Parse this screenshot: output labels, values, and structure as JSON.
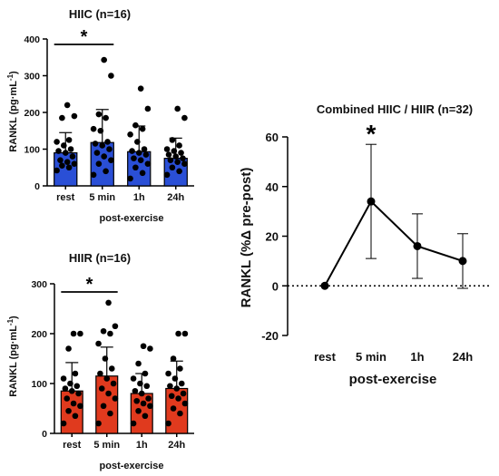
{
  "chart_data": [
    {
      "type": "bar",
      "title": "HIIC (n=16)",
      "ylabel": "RANKL (pg·mL",
      "ylabel_sup": "-1",
      "ylabel_close": ")",
      "xlabel": "post-exercise",
      "categories": [
        "rest",
        "5 min",
        "1h",
        "24h"
      ],
      "values": [
        90,
        118,
        93,
        75
      ],
      "sd": [
        55,
        90,
        70,
        55
      ],
      "ylim": [
        0,
        400
      ],
      "yticks": [
        "0",
        "100",
        "200",
        "300",
        "400"
      ],
      "bar_color": "#2a4fd6",
      "significance": {
        "from": 0,
        "to": 1,
        "label": "*"
      },
      "points": [
        [
          42,
          50,
          55,
          60,
          65,
          70,
          80,
          90,
          95,
          100,
          110,
          120,
          125,
          185,
          190,
          220
        ],
        [
          30,
          40,
          60,
          70,
          80,
          90,
          100,
          110,
          115,
          120,
          150,
          155,
          185,
          195,
          300,
          343
        ],
        [
          20,
          35,
          50,
          60,
          70,
          75,
          85,
          90,
          95,
          100,
          120,
          140,
          155,
          165,
          210,
          265
        ],
        [
          30,
          40,
          50,
          60,
          65,
          70,
          75,
          80,
          85,
          90,
          95,
          100,
          110,
          125,
          185,
          210
        ]
      ]
    },
    {
      "type": "bar",
      "title": "HIIR (n=16)",
      "ylabel": "RANKL (pg·mL",
      "ylabel_sup": "-1",
      "ylabel_close": ")",
      "xlabel": "post-exercise",
      "categories": [
        "rest",
        "5 min",
        "1h",
        "24h"
      ],
      "values": [
        85,
        115,
        80,
        90
      ],
      "sd": [
        57,
        58,
        40,
        55
      ],
      "ylim": [
        0,
        300
      ],
      "yticks": [
        "0",
        "100",
        "200",
        "300"
      ],
      "bar_color": "#e03a1e",
      "significance": {
        "from": 0,
        "to": 1,
        "label": "*"
      },
      "points": [
        [
          20,
          35,
          45,
          55,
          60,
          70,
          80,
          85,
          90,
          95,
          100,
          110,
          120,
          170,
          200,
          200
        ],
        [
          20,
          40,
          55,
          70,
          80,
          90,
          100,
          110,
          120,
          130,
          150,
          180,
          200,
          205,
          215,
          262
        ],
        [
          20,
          35,
          45,
          55,
          60,
          65,
          70,
          80,
          85,
          95,
          100,
          110,
          120,
          140,
          170,
          175
        ],
        [
          20,
          40,
          50,
          60,
          70,
          75,
          80,
          90,
          95,
          100,
          110,
          120,
          130,
          150,
          200,
          200
        ]
      ]
    },
    {
      "type": "line",
      "title": "Combined HIIC / HIIR (n=32)",
      "ylabel": "RANKL (%Δ pre-post)",
      "xlabel": "post-exercise",
      "categories": [
        "rest",
        "5 min",
        "1h",
        "24h"
      ],
      "values": [
        0,
        34,
        16,
        10
      ],
      "error_low": [
        0,
        11,
        3,
        -1
      ],
      "error_high": [
        0,
        57,
        29,
        21
      ],
      "ylim": [
        -20,
        60
      ],
      "yticks": [
        "-20",
        "0",
        "20",
        "40",
        "60"
      ],
      "reference_line": 0,
      "significance": {
        "index": 1,
        "label": "*"
      }
    }
  ]
}
